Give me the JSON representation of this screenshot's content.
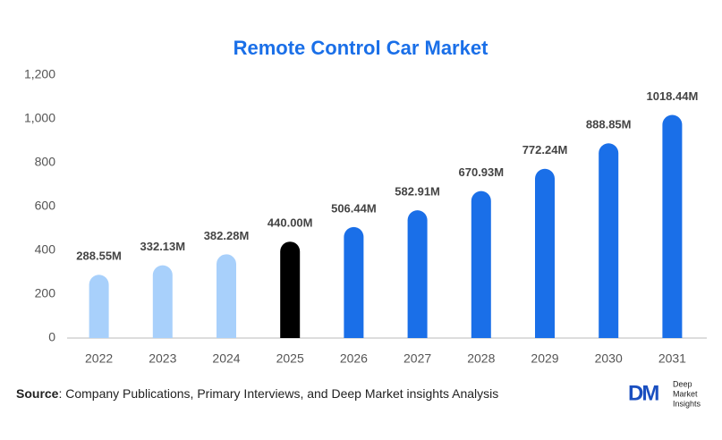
{
  "chart_data": {
    "type": "bar",
    "title": "Remote Control Car Market",
    "categories": [
      "2022",
      "2023",
      "2024",
      "2025",
      "2026",
      "2027",
      "2028",
      "2029",
      "2030",
      "2031"
    ],
    "values": [
      288.55,
      332.13,
      382.28,
      440.0,
      506.44,
      582.91,
      670.93,
      772.24,
      888.85,
      1018.44
    ],
    "value_labels": [
      "288.55M",
      "332.13M",
      "382.28M",
      "440.00M",
      "506.44M",
      "582.91M",
      "670.93M",
      "772.24M",
      "888.85M",
      "1018.44M"
    ],
    "colors": [
      "#a8d0fb",
      "#a8d0fb",
      "#a8d0fb",
      "#000000",
      "#1a6fe8",
      "#1a6fe8",
      "#1a6fe8",
      "#1a6fe8",
      "#1a6fe8",
      "#1a6fe8"
    ],
    "ylim": [
      0,
      1200
    ],
    "yticks": [
      0,
      200,
      400,
      600,
      800,
      {
        "value": 1000,
        "label": "1,000"
      },
      {
        "value": 1200,
        "label": "1,200"
      }
    ],
    "grid": false
  },
  "source": {
    "label": "Source",
    "text": ": Company Publications, Primary Interviews, and Deep Market insights Analysis"
  },
  "logo": {
    "mark": "DM",
    "lines": [
      "Deep",
      "Market",
      "Insights"
    ]
  }
}
